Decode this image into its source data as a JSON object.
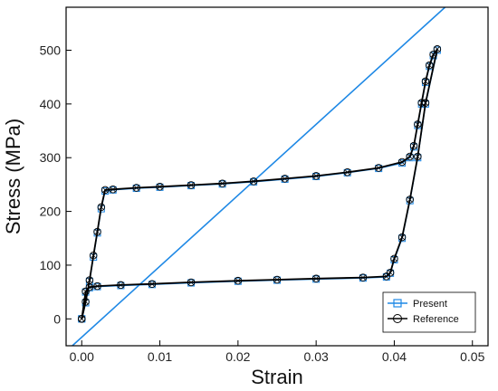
{
  "chart_data": {
    "type": "line",
    "title": "",
    "xlabel": "Strain",
    "ylabel": "Stress (MPa)",
    "xlim": [
      -0.002,
      0.052
    ],
    "ylim": [
      -50,
      580
    ],
    "xticks": [
      0.0,
      0.01,
      0.02,
      0.03,
      0.04,
      0.05
    ],
    "xtick_labels": [
      "0.00",
      "0.01",
      "0.02",
      "0.03",
      "0.04",
      "0.05"
    ],
    "yticks": [
      0,
      100,
      200,
      300,
      400,
      500
    ],
    "ytick_labels": [
      "0",
      "100",
      "200",
      "300",
      "400",
      "500"
    ],
    "grid": false,
    "legend_position": "bottom-right",
    "series": [
      {
        "name": "Present",
        "color": "#1e88e5",
        "marker": "square",
        "x": [
          0.0,
          0.0005,
          0.001,
          0.0015,
          0.002,
          0.0025,
          0.003,
          0.004,
          0.007,
          0.01,
          0.014,
          0.018,
          0.022,
          0.026,
          0.03,
          0.034,
          0.038,
          0.041,
          0.042,
          0.0425,
          0.043,
          0.0435,
          0.044,
          0.0445,
          0.045,
          0.0455,
          0.044,
          0.043,
          0.042,
          0.041,
          0.04,
          0.0395,
          0.039,
          0.036,
          0.03,
          0.025,
          0.02,
          0.014,
          0.009,
          0.005,
          0.002,
          0.001,
          0.0005,
          0.0
        ],
        "y": [
          0,
          30,
          70,
          115,
          160,
          205,
          238,
          240,
          243,
          245,
          248,
          251,
          255,
          260,
          265,
          272,
          280,
          290,
          300,
          320,
          360,
          400,
          440,
          470,
          490,
          500,
          400,
          300,
          220,
          150,
          110,
          85,
          78,
          76,
          74,
          72,
          70,
          67,
          64,
          62,
          60,
          58,
          50,
          0
        ]
      },
      {
        "name": "Reference",
        "color": "#000000",
        "marker": "circle",
        "x": [
          0.0,
          0.0005,
          0.001,
          0.0015,
          0.002,
          0.0025,
          0.003,
          0.004,
          0.007,
          0.01,
          0.014,
          0.018,
          0.022,
          0.026,
          0.03,
          0.034,
          0.038,
          0.041,
          0.042,
          0.0425,
          0.043,
          0.0435,
          0.044,
          0.0445,
          0.045,
          0.0455,
          0.044,
          0.043,
          0.042,
          0.041,
          0.04,
          0.0395,
          0.039,
          0.036,
          0.03,
          0.025,
          0.02,
          0.014,
          0.009,
          0.005,
          0.002,
          0.001,
          0.0005,
          0.0
        ],
        "y": [
          0,
          32,
          72,
          118,
          162,
          208,
          240,
          241,
          244,
          246,
          249,
          252,
          256,
          261,
          266,
          273,
          281,
          292,
          302,
          322,
          362,
          402,
          442,
          472,
          492,
          502,
          402,
          302,
          222,
          152,
          112,
          86,
          79,
          77,
          75,
          73,
          71,
          68,
          65,
          63,
          61,
          59,
          51,
          0
        ]
      }
    ],
    "elastic_line": {
      "color": "#1e88e5",
      "x": [
        -0.0012,
        0.0465
      ],
      "y": [
        -50,
        580
      ]
    }
  }
}
